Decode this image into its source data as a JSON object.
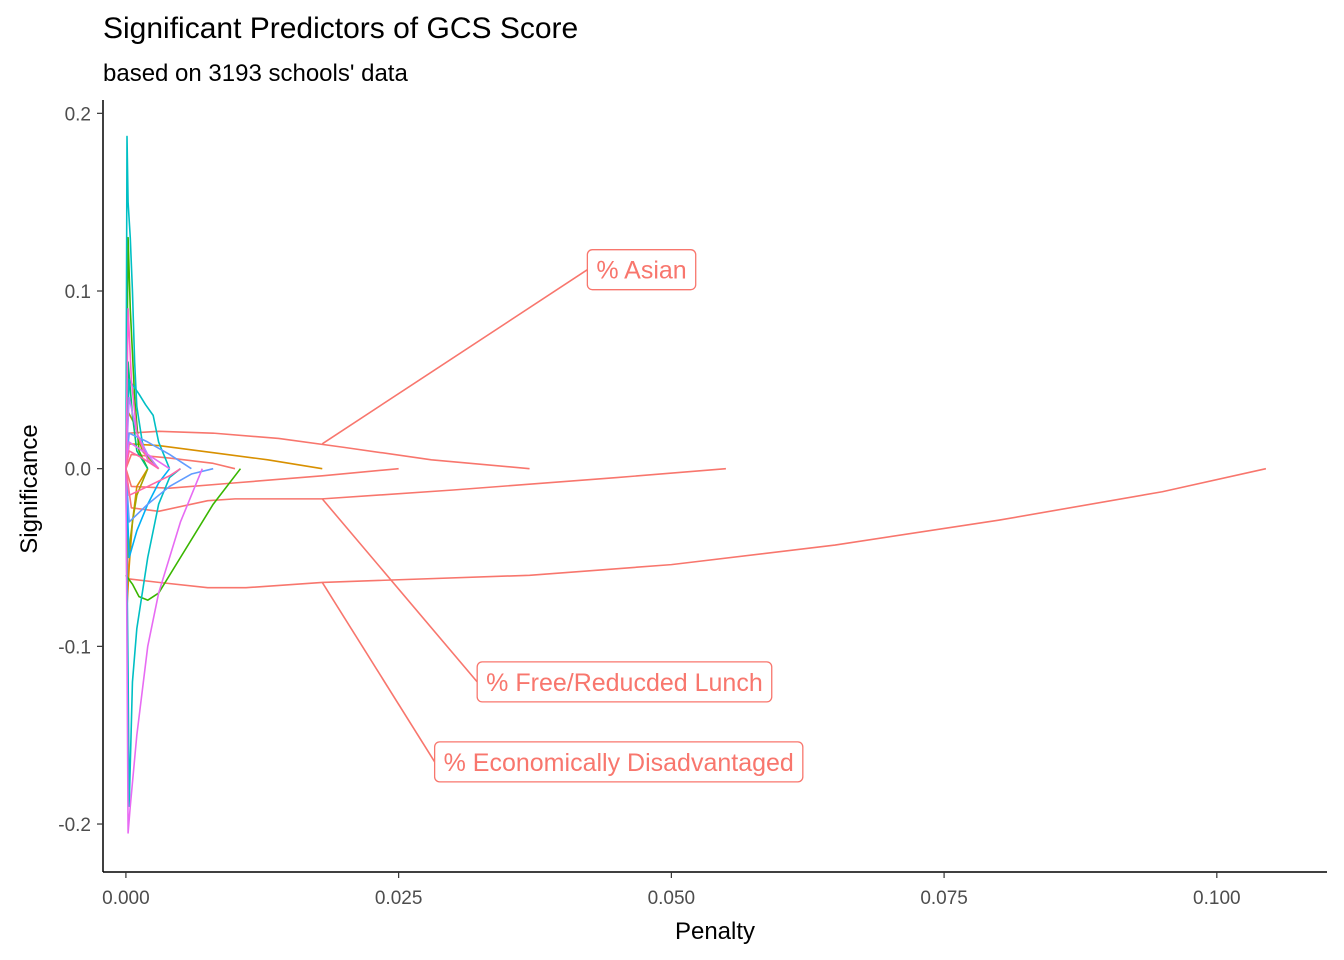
{
  "chart_data": {
    "type": "line",
    "title": "Significant Predictors of GCS Score",
    "subtitle": "based on 3193 schools' data",
    "xlabel": "Penalty",
    "ylabel": "Significance",
    "xlim": [
      -0.0021,
      0.1101
    ],
    "ylim": [
      -0.227,
      0.2075
    ],
    "x_ticks": [
      0.0,
      0.025,
      0.05,
      0.075,
      0.1
    ],
    "x_tick_labels": [
      "0.000",
      "0.025",
      "0.050",
      "0.075",
      "0.100"
    ],
    "y_ticks": [
      -0.2,
      -0.1,
      0.0,
      0.1,
      0.2
    ],
    "y_tick_labels": [
      "-0.2",
      "-0.1",
      "0.0",
      "0.1",
      "0.2"
    ],
    "grid": false,
    "legend": "none",
    "highlight_color": "#F8766D",
    "series": [
      {
        "color": "#F8766D",
        "points": [
          [
            0.0,
            0.0
          ],
          [
            0.0002,
            0.02
          ],
          [
            0.003,
            0.021
          ],
          [
            0.008,
            0.02
          ],
          [
            0.014,
            0.017
          ],
          [
            0.02,
            0.012
          ],
          [
            0.028,
            0.005
          ],
          [
            0.037,
            0.0
          ]
        ]
      },
      {
        "color": "#F8766D",
        "points": [
          [
            0.0,
            0.0
          ],
          [
            0.0002,
            -0.062
          ],
          [
            0.003,
            -0.064
          ],
          [
            0.0075,
            -0.067
          ],
          [
            0.011,
            -0.067
          ],
          [
            0.018,
            -0.064
          ],
          [
            0.037,
            -0.06
          ],
          [
            0.05,
            -0.054
          ],
          [
            0.065,
            -0.043
          ],
          [
            0.08,
            -0.029
          ],
          [
            0.095,
            -0.013
          ],
          [
            0.1045,
            0.0
          ]
        ]
      },
      {
        "color": "#F8766D",
        "points": [
          [
            0.0,
            0.0
          ],
          [
            0.0005,
            -0.022
          ],
          [
            0.003,
            -0.024
          ],
          [
            0.0075,
            -0.018
          ],
          [
            0.01,
            -0.017
          ],
          [
            0.018,
            -0.017
          ],
          [
            0.03,
            -0.012
          ],
          [
            0.045,
            -0.005
          ],
          [
            0.055,
            0.0
          ]
        ]
      },
      {
        "color": "#F8766D",
        "points": [
          [
            0.0,
            0.0
          ],
          [
            0.0005,
            -0.01
          ],
          [
            0.004,
            -0.011
          ],
          [
            0.01,
            -0.008
          ],
          [
            0.018,
            -0.004
          ],
          [
            0.025,
            0.0
          ]
        ]
      },
      {
        "color": "#F8766D",
        "points": [
          [
            0.0,
            0.0
          ],
          [
            0.0005,
            0.008
          ],
          [
            0.004,
            0.006
          ],
          [
            0.008,
            0.003
          ],
          [
            0.01,
            0.0
          ]
        ]
      },
      {
        "color": "#D89000",
        "points": [
          [
            0.0,
            0.0
          ],
          [
            0.0003,
            0.014
          ],
          [
            0.003,
            0.013
          ],
          [
            0.008,
            0.009
          ],
          [
            0.013,
            0.005
          ],
          [
            0.018,
            0.0
          ]
        ]
      },
      {
        "color": "#D89000",
        "points": [
          [
            0.0,
            0.0
          ],
          [
            0.0001,
            -0.078
          ],
          [
            0.0003,
            -0.055
          ],
          [
            0.0006,
            -0.03
          ],
          [
            0.001,
            -0.01
          ],
          [
            0.002,
            0.0
          ]
        ]
      },
      {
        "color": "#A3A500",
        "points": [
          [
            0.0,
            0.0
          ],
          [
            0.0002,
            0.032
          ],
          [
            0.0008,
            0.025
          ],
          [
            0.0015,
            0.01
          ],
          [
            0.003,
            0.0
          ]
        ]
      },
      {
        "color": "#A3A500",
        "points": [
          [
            0.0,
            0.0
          ],
          [
            0.0002,
            -0.05
          ],
          [
            0.0006,
            -0.03
          ],
          [
            0.001,
            -0.015
          ],
          [
            0.002,
            0.0
          ]
        ]
      },
      {
        "color": "#39B600",
        "points": [
          [
            0.0,
            0.0
          ],
          [
            0.0002,
            0.13
          ],
          [
            0.0004,
            0.09
          ],
          [
            0.0008,
            0.04
          ],
          [
            0.0012,
            0.01
          ],
          [
            0.002,
            0.0
          ]
        ]
      },
      {
        "color": "#39B600",
        "points": [
          [
            0.0,
            -0.06
          ],
          [
            0.0006,
            -0.065
          ],
          [
            0.0012,
            -0.072
          ],
          [
            0.002,
            -0.074
          ],
          [
            0.003,
            -0.07
          ],
          [
            0.005,
            -0.05
          ],
          [
            0.008,
            -0.02
          ],
          [
            0.0105,
            0.0
          ]
        ]
      },
      {
        "color": "#00BF7D",
        "points": [
          [
            0.0,
            0.0
          ],
          [
            0.0002,
            0.06
          ],
          [
            0.0006,
            0.03
          ],
          [
            0.001,
            0.01
          ],
          [
            0.002,
            0.0
          ]
        ]
      },
      {
        "color": "#00BFC4",
        "points": [
          [
            0.0,
            0.0
          ],
          [
            0.0001,
            0.187
          ],
          [
            0.0002,
            0.15
          ],
          [
            0.0004,
            0.13
          ],
          [
            0.0006,
            0.1
          ],
          [
            0.0008,
            0.06
          ],
          [
            0.001,
            0.035
          ],
          [
            0.0015,
            0.015
          ],
          [
            0.002,
            0.005
          ],
          [
            0.003,
            0.0
          ]
        ]
      },
      {
        "color": "#00BFC4",
        "points": [
          [
            0.0,
            0.0
          ],
          [
            0.0002,
            -0.115
          ],
          [
            0.0003,
            -0.19
          ],
          [
            0.0006,
            -0.12
          ],
          [
            0.001,
            -0.09
          ],
          [
            0.002,
            -0.05
          ],
          [
            0.003,
            -0.02
          ],
          [
            0.004,
            -0.005
          ],
          [
            0.005,
            0.0
          ]
        ]
      },
      {
        "color": "#00BFC4",
        "points": [
          [
            0.0,
            0.0
          ],
          [
            0.0003,
            0.05
          ],
          [
            0.0012,
            0.042
          ],
          [
            0.0018,
            0.036
          ],
          [
            0.0025,
            0.03
          ],
          [
            0.003,
            0.015
          ],
          [
            0.004,
            0.0
          ]
        ]
      },
      {
        "color": "#00B0F6",
        "points": [
          [
            0.0,
            0.0
          ],
          [
            0.0003,
            -0.05
          ],
          [
            0.001,
            -0.035
          ],
          [
            0.002,
            -0.02
          ],
          [
            0.003,
            -0.008
          ],
          [
            0.004,
            0.0
          ]
        ]
      },
      {
        "color": "#619CFF",
        "points": [
          [
            0.0,
            0.0
          ],
          [
            0.0003,
            0.02
          ],
          [
            0.002,
            0.015
          ],
          [
            0.004,
            0.008
          ],
          [
            0.006,
            0.0
          ]
        ]
      },
      {
        "color": "#619CFF",
        "points": [
          [
            0.0,
            0.0
          ],
          [
            0.0003,
            -0.03
          ],
          [
            0.002,
            -0.02
          ],
          [
            0.004,
            -0.01
          ],
          [
            0.006,
            -0.003
          ],
          [
            0.008,
            0.0
          ]
        ]
      },
      {
        "color": "#B983FF",
        "points": [
          [
            0.0,
            0.0
          ],
          [
            0.0003,
            0.04
          ],
          [
            0.001,
            0.02
          ],
          [
            0.002,
            0.008
          ],
          [
            0.003,
            0.0
          ]
        ]
      },
      {
        "color": "#E76BF3",
        "points": [
          [
            0.0,
            0.0
          ],
          [
            0.0002,
            -0.205
          ],
          [
            0.0004,
            -0.19
          ],
          [
            0.001,
            -0.15
          ],
          [
            0.002,
            -0.1
          ],
          [
            0.003,
            -0.07
          ],
          [
            0.005,
            -0.03
          ],
          [
            0.007,
            0.0
          ]
        ]
      },
      {
        "color": "#E76BF3",
        "points": [
          [
            0.0,
            0.0
          ],
          [
            0.0003,
            0.015
          ],
          [
            0.002,
            0.008
          ],
          [
            0.004,
            0.0
          ]
        ]
      },
      {
        "color": "#FD61D1",
        "points": [
          [
            0.0,
            0.0
          ],
          [
            0.0002,
            0.09
          ],
          [
            0.0005,
            0.05
          ],
          [
            0.001,
            0.02
          ],
          [
            0.002,
            0.005
          ],
          [
            0.003,
            0.0
          ]
        ]
      },
      {
        "color": "#FF67A4",
        "points": [
          [
            0.0,
            0.0
          ],
          [
            0.0003,
            -0.015
          ],
          [
            0.002,
            -0.01
          ],
          [
            0.004,
            -0.004
          ],
          [
            0.005,
            0.0
          ]
        ]
      },
      {
        "color": "#FF67A4",
        "points": [
          [
            0.0,
            0.0
          ],
          [
            0.0003,
            0.01
          ],
          [
            0.0015,
            0.006
          ],
          [
            0.003,
            0.0
          ]
        ]
      }
    ],
    "annotations": [
      {
        "label": "% Asian",
        "color": "#F8766D",
        "line_from": [
          0.018,
          0.014
        ],
        "line_to": [
          0.0423,
          0.112
        ]
      },
      {
        "label": "% Free/Reducded Lunch",
        "color": "#F8766D",
        "line_from": [
          0.018,
          -0.017
        ],
        "line_to": [
          0.0322,
          -0.12
        ]
      },
      {
        "label": "% Economically Disadvantaged",
        "color": "#F8766D",
        "line_from": [
          0.018,
          -0.064
        ],
        "line_to": [
          0.0283,
          -0.165
        ]
      }
    ]
  }
}
